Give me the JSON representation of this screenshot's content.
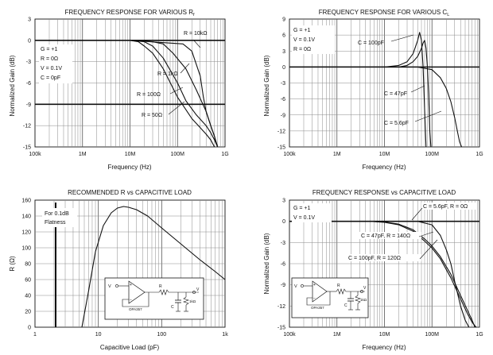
{
  "charts": [
    {
      "type": "line",
      "title": "FREQUENCY RESPONSE FOR VARIOUS R",
      "title_sub": "f",
      "xlabel": "Frequency (Hz)",
      "ylabel": "Normalized Gain (dB)",
      "x_scale": "log",
      "xlim": [
        100000,
        1000000000
      ],
      "ylim": [
        -15,
        3
      ],
      "x_ticks": [
        "100k",
        "1M",
        "10M",
        "100M",
        "1G"
      ],
      "y_ticks": [
        "3",
        "0",
        "-3",
        "-6",
        "-9",
        "-12",
        "-15"
      ],
      "thick_hlines": [
        0,
        -9
      ],
      "conditions": [
        "G = +1",
        "R = 0Ω",
        "V = 0.1V",
        "C = 0pF"
      ],
      "series": [
        {
          "name": "R = 10kΩ",
          "x": [
            100000.0,
            10000000.0,
            130000000.0,
            200000000.0,
            300000000.0,
            350000000.0,
            400000000.0,
            500000000.0,
            600000000.0,
            650000000.0,
            700000000.0
          ],
          "y": [
            0,
            0,
            -0.5,
            -1.5,
            -5,
            -8,
            -10,
            -12,
            -13.5,
            -14.5,
            -15
          ]
        },
        {
          "name": "R = 1kΩ",
          "x": [
            100000.0,
            10000000.0,
            30000000.0,
            50000000.0,
            80000000.0,
            150000000.0,
            250000000.0,
            400000000.0,
            500000000.0,
            600000000.0,
            700000000.0
          ],
          "y": [
            0,
            0,
            -0.2,
            -0.5,
            -1.8,
            -4,
            -7,
            -10,
            -12,
            -13.5,
            -15
          ]
        },
        {
          "name": "R = 100Ω",
          "x": [
            100000.0,
            10000000.0,
            20000000.0,
            30000000.0,
            50000000.0,
            100000000.0,
            150000000.0,
            250000000.0,
            400000000.0,
            500000000.0,
            600000000.0,
            700000000.0
          ],
          "y": [
            0,
            0,
            -0.2,
            -0.8,
            -2.5,
            -6,
            -8.5,
            -10.5,
            -12,
            -13,
            -14,
            -15
          ]
        },
        {
          "name": "R = 50Ω",
          "x": [
            100000.0,
            10000000.0,
            15000000.0,
            20000000.0,
            30000000.0,
            50000000.0,
            100000000.0,
            200000000.0,
            300000000.0,
            400000000.0,
            500000000.0,
            600000000.0
          ],
          "y": [
            0,
            0,
            -0.2,
            -0.8,
            -1.8,
            -4,
            -8,
            -11,
            -12.3,
            -13.2,
            -14,
            -15
          ]
        }
      ],
      "labels": [
        "R = 10kΩ",
        "R = 1kΩ",
        "R = 100Ω",
        "R = 50Ω"
      ]
    },
    {
      "type": "line",
      "title": "FREQUENCY RESPONSE FOR VARIOUS C",
      "title_sub": "L",
      "xlabel": "Frequency (Hz)",
      "ylabel": "Normalized Gain (dB)",
      "x_scale": "log",
      "xlim": [
        100000,
        1000000000
      ],
      "ylim": [
        -15,
        9
      ],
      "x_ticks": [
        "100k",
        "1M",
        "10M",
        "100M",
        "1G"
      ],
      "y_ticks": [
        "9",
        "6",
        "3",
        "0",
        "-3",
        "-6",
        "-9",
        "-12",
        "-15"
      ],
      "thick_hlines": [
        0
      ],
      "conditions": [
        "G = +1",
        "V = 0.1V",
        "R = 0Ω"
      ],
      "series": [
        {
          "name": "C = 100pF",
          "x": [
            100000.0,
            10000000.0,
            20000000.0,
            30000000.0,
            40000000.0,
            50000000.0,
            55000000.0,
            60000000.0,
            65000000.0,
            70000000.0,
            75000000.0
          ],
          "y": [
            0,
            0,
            0.3,
            1,
            2.5,
            5,
            6.5,
            5,
            0,
            -8,
            -15
          ]
        },
        {
          "name": "C = 47pF",
          "x": [
            100000.0,
            20000000.0,
            30000000.0,
            40000000.0,
            50000000.0,
            60000000.0,
            65000000.0,
            70000000.0,
            75000000.0,
            80000000.0,
            85000000.0,
            90000000.0,
            95000000.0
          ],
          "y": [
            0,
            0,
            0.3,
            1,
            2,
            3.5,
            4.5,
            5,
            3.5,
            0,
            -5,
            -12,
            -15
          ]
        },
        {
          "name": "C = 5.6pF",
          "x": [
            100000.0,
            50000000.0,
            100000000.0,
            150000000.0,
            200000000.0,
            250000000.0,
            300000000.0,
            350000000.0,
            380000000.0,
            420000000.0
          ],
          "y": [
            0,
            0,
            -0.5,
            -2,
            -4,
            -6.5,
            -9.5,
            -12.5,
            -14,
            -15
          ]
        }
      ],
      "labels": [
        "C = 100pF",
        "C = 47pF",
        "C = 5.6pF"
      ]
    },
    {
      "type": "line",
      "title": "RECOMMENDED R vs CAPACITIVE LOAD",
      "title_sub": "S",
      "xlabel": "Capacitive Load (pF)",
      "ylabel": "R (Ω)",
      "x_scale": "log",
      "xlim": [
        1,
        1000
      ],
      "ylim": [
        0,
        160
      ],
      "x_ticks": [
        "1",
        "10",
        "100",
        "1k"
      ],
      "y_ticks": [
        "160",
        "140",
        "120",
        "100",
        "80",
        "60",
        "40",
        "20",
        "0"
      ],
      "note": [
        "For 0.1dB",
        "Flatness"
      ],
      "series": [
        {
          "name": "R_S",
          "x": [
            5.5,
            7,
            9,
            12,
            16,
            20,
            25,
            30,
            40,
            60,
            100,
            200,
            400,
            700,
            1000
          ],
          "y": [
            0,
            45,
            95,
            128,
            144,
            150,
            152,
            151,
            148,
            140,
            125,
            105,
            85,
            70,
            60
          ]
        }
      ]
    },
    {
      "type": "line",
      "title": "FREQUENCY RESPONSE vs CAPACITIVE LOAD",
      "title_sub": "",
      "xlabel": "Frequency (Hz)",
      "ylabel": "Normalized Gain (dB)",
      "x_scale": "log",
      "xlim": [
        100000,
        1000000000
      ],
      "ylim": [
        -15,
        3
      ],
      "x_ticks": [
        "100k",
        "1M",
        "10M",
        "100M",
        "1G"
      ],
      "y_ticks": [
        "3",
        "0",
        "-3",
        "-6",
        "-9",
        "-12",
        "-15"
      ],
      "thick_hlines": [
        0
      ],
      "conditions": [
        "G = +1",
        "V = 0.1V"
      ],
      "series": [
        {
          "name": "C = 5.6pF, R = 0Ω",
          "x": [
            100000.0,
            50000000.0,
            100000000.0,
            150000000.0,
            200000000.0,
            250000000.0,
            300000000.0,
            400000000.0,
            500000000.0,
            600000000.0
          ],
          "y": [
            0,
            0,
            -0.5,
            -2,
            -4,
            -6,
            -8.5,
            -12,
            -14,
            -15
          ]
        },
        {
          "name": "C = 47pF, R = 140Ω",
          "x": [
            100000.0,
            5000000.0,
            10000000.0,
            20000000.0,
            40000000.0,
            70000000.0,
            100000000.0,
            150000000.0,
            250000000.0,
            400000000.0,
            550000000.0,
            700000000.0,
            800000000.0
          ],
          "y": [
            0,
            0,
            -0.1,
            -0.4,
            -1.2,
            -2.5,
            -3.5,
            -5,
            -7.5,
            -10.5,
            -12.5,
            -14,
            -15
          ]
        },
        {
          "name": "C = 100pF, R = 120Ω",
          "x": [
            100000.0,
            5000000.0,
            10000000.0,
            20000000.0,
            40000000.0,
            70000000.0,
            100000000.0,
            150000000.0,
            250000000.0,
            400000000.0,
            550000000.0,
            700000000.0,
            850000000.0
          ],
          "y": [
            0,
            0,
            -0.15,
            -0.5,
            -1.4,
            -2.8,
            -3.8,
            -5.3,
            -8,
            -11,
            -13,
            -14.3,
            -15
          ]
        }
      ],
      "labels": [
        "C = 5.6pF, R = 0Ω",
        "C = 47pF, R = 140Ω",
        "C = 100pF, R = 120Ω"
      ]
    }
  ],
  "schematic": {
    "opamp": "OPA357",
    "vin": "V",
    "vo": "V",
    "rs": "R",
    "cl": "C",
    "rl": "1kΩ"
  }
}
